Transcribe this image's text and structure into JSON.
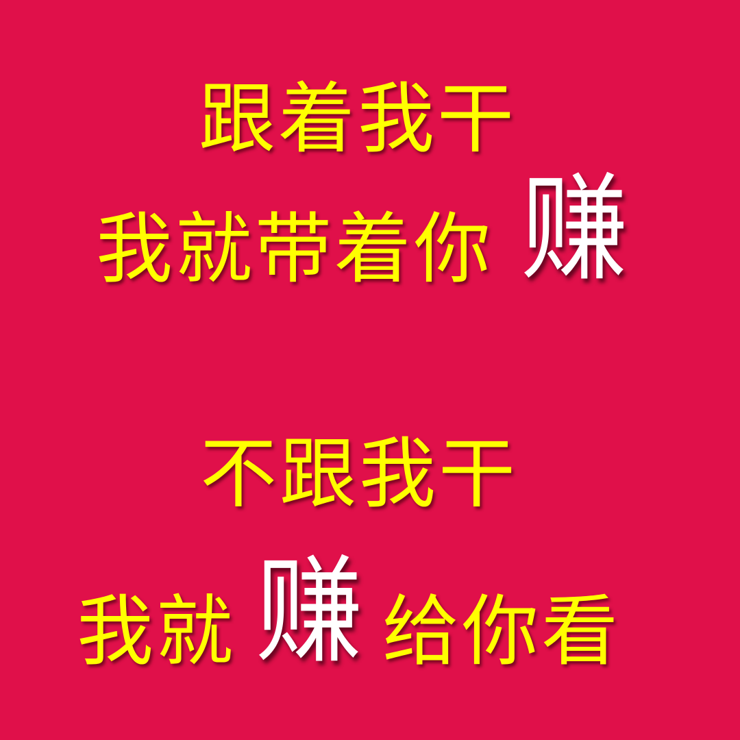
{
  "background_color": "#e0104a",
  "text_color_primary": "#ffff00",
  "text_color_highlight": "#ffffff",
  "line1": {
    "text": "跟着我干"
  },
  "line2": {
    "text_before": "我就带着你",
    "highlight": "赚"
  },
  "line3": {
    "text": "不跟我干"
  },
  "line4": {
    "text_before": "我就",
    "highlight": "赚",
    "text_after": "给你看"
  }
}
